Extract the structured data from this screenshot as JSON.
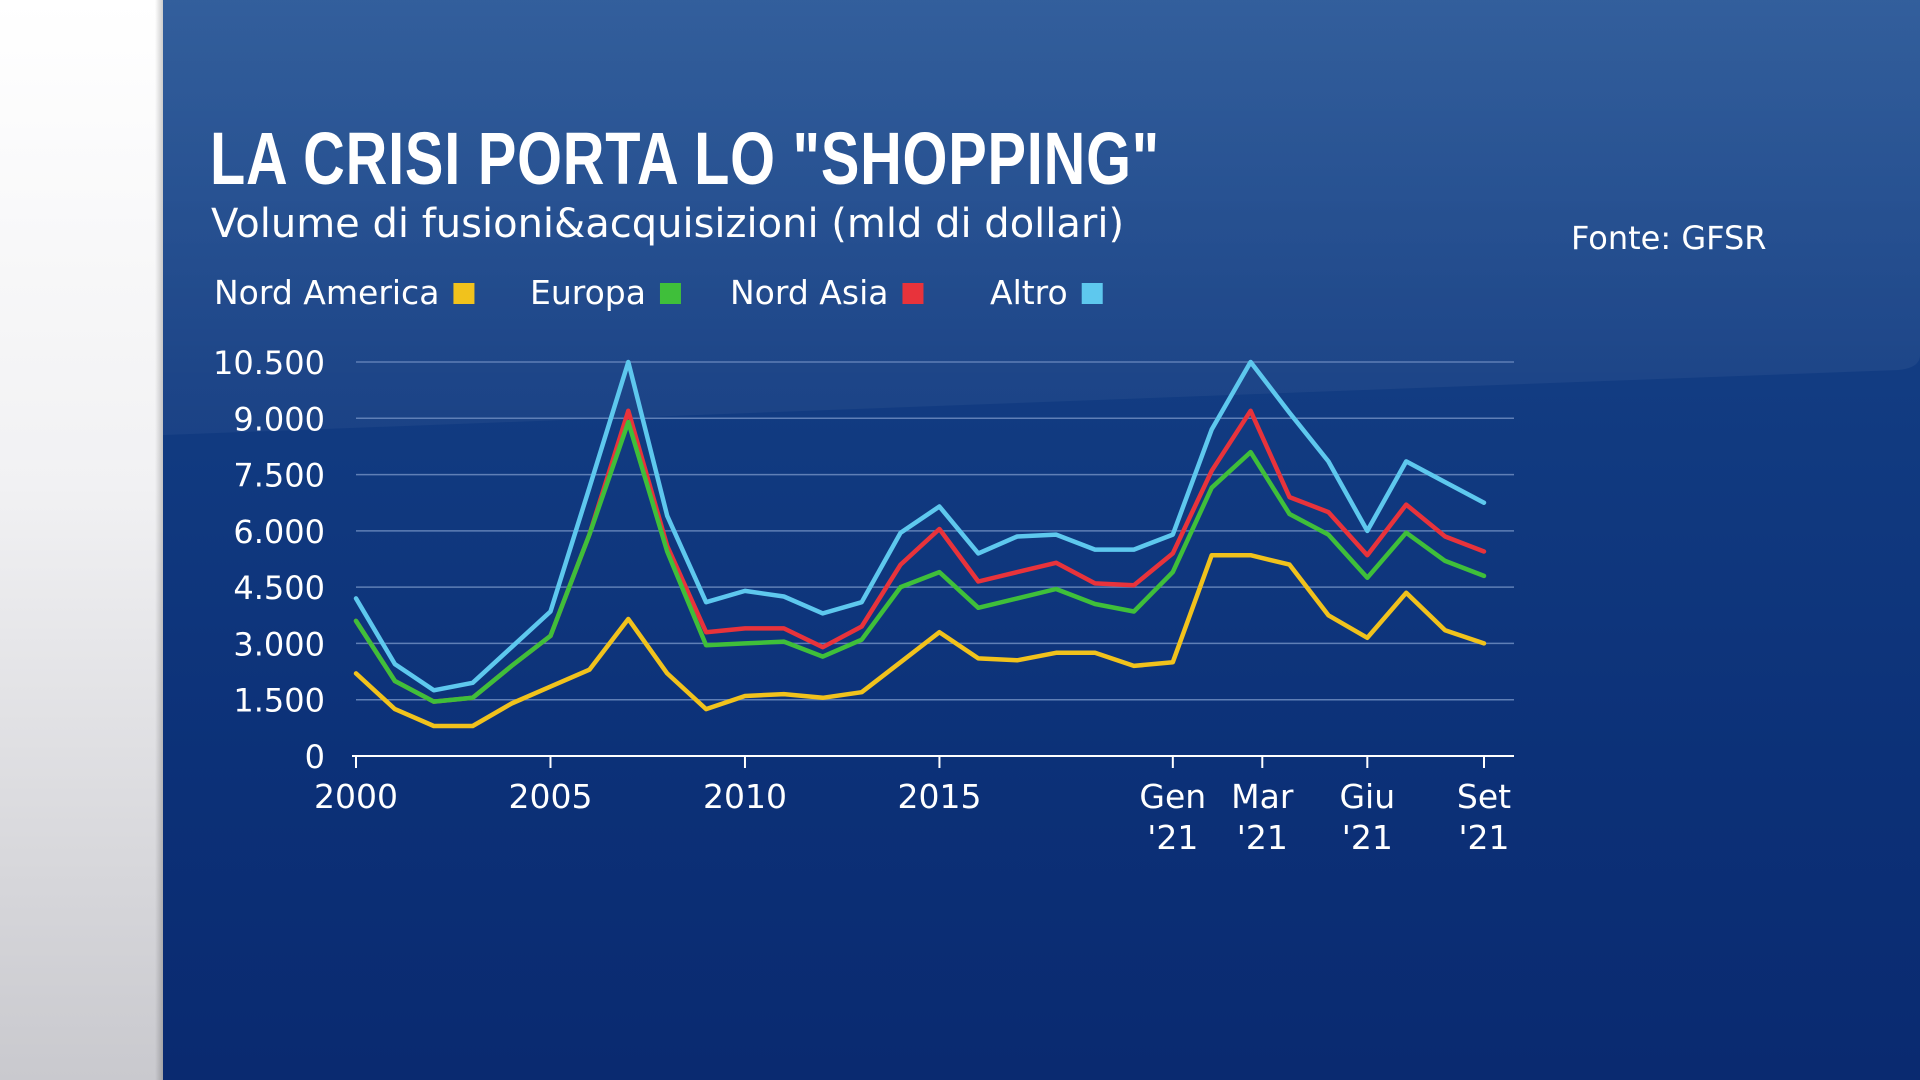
{
  "slide": {
    "title": "LA CRISI PORTA LO \"SHOPPING\"",
    "subtitle": "Volume di fusioni&acquisizioni (mld di dollari)",
    "source": "Fonte: GFSR"
  },
  "colors": {
    "background": "#0e3479",
    "grid": "#5f7fb6",
    "text": "#ffffff"
  },
  "chart_data": {
    "type": "line",
    "title": "LA CRISI PORTA LO \"SHOPPING\"",
    "subtitle": "Volume di fusioni&acquisizioni (mld di dollari)",
    "xlabel": "",
    "ylabel": "",
    "ylim": [
      0,
      10500
    ],
    "grid": true,
    "legend_position": "top-left",
    "yticks": [
      0,
      1500,
      3000,
      4500,
      6000,
      7500,
      9000,
      10500
    ],
    "ytick_labels": [
      "0",
      "1.500",
      "3.000",
      "4.500",
      "6.000",
      "7.500",
      "9.000",
      "10.500"
    ],
    "x_count": 30,
    "xticks": [
      {
        "index": 0,
        "lines": [
          "2000"
        ]
      },
      {
        "index": 5,
        "lines": [
          "2005"
        ]
      },
      {
        "index": 10,
        "lines": [
          "2010"
        ]
      },
      {
        "index": 15,
        "lines": [
          "2015"
        ]
      },
      {
        "index": 21,
        "lines": [
          "Gen",
          "'21"
        ]
      },
      {
        "index": 23.3,
        "lines": [
          "Mar",
          "'21"
        ]
      },
      {
        "index": 26,
        "lines": [
          "Giu",
          "'21"
        ]
      },
      {
        "index": 29,
        "lines": [
          "Set",
          "'21"
        ]
      }
    ],
    "series": [
      {
        "name": "Altro",
        "color": "#5ec8ee",
        "values": [
          4200,
          2450,
          1750,
          1950,
          2900,
          3850,
          7150,
          10500,
          6400,
          4100,
          4400,
          4250,
          3800,
          4100,
          5950,
          6650,
          5400,
          5850,
          5900,
          5500,
          5500,
          5900,
          8700,
          10500,
          9150,
          7850,
          6000,
          7850,
          7300,
          6750
        ]
      },
      {
        "name": "Nord Asia",
        "color": "#e8333b",
        "values": [
          3600,
          2000,
          1450,
          1550,
          2400,
          3200,
          5900,
          9200,
          5600,
          3300,
          3400,
          3400,
          2900,
          3450,
          5100,
          6050,
          4650,
          4900,
          5150,
          4600,
          4550,
          5400,
          7600,
          9200,
          6900,
          6500,
          5350,
          6700,
          5850,
          5450
        ]
      },
      {
        "name": "Europa",
        "color": "#3fbf3a",
        "values": [
          3600,
          2000,
          1450,
          1550,
          2400,
          3200,
          5900,
          8900,
          5450,
          2950,
          3000,
          3050,
          2650,
          3100,
          4500,
          4900,
          3950,
          4200,
          4450,
          4050,
          3850,
          4900,
          7150,
          8100,
          6450,
          5900,
          4750,
          5950,
          5200,
          4800
        ]
      },
      {
        "name": "Nord America",
        "color": "#f1c21c",
        "values": [
          2200,
          1250,
          800,
          800,
          1400,
          1850,
          2300,
          3650,
          2200,
          1250,
          1600,
          1650,
          1550,
          1700,
          2500,
          3300,
          2600,
          2550,
          2750,
          2750,
          2400,
          2500,
          5350,
          5350,
          5100,
          3750,
          3150,
          4350,
          3350,
          3000
        ]
      }
    ],
    "legend": [
      {
        "label": "Nord America",
        "color": "#f1c21c"
      },
      {
        "label": "Europa",
        "color": "#3fbf3a"
      },
      {
        "label": "Nord Asia",
        "color": "#e8333b"
      },
      {
        "label": "Altro",
        "color": "#5ec8ee"
      }
    ]
  }
}
